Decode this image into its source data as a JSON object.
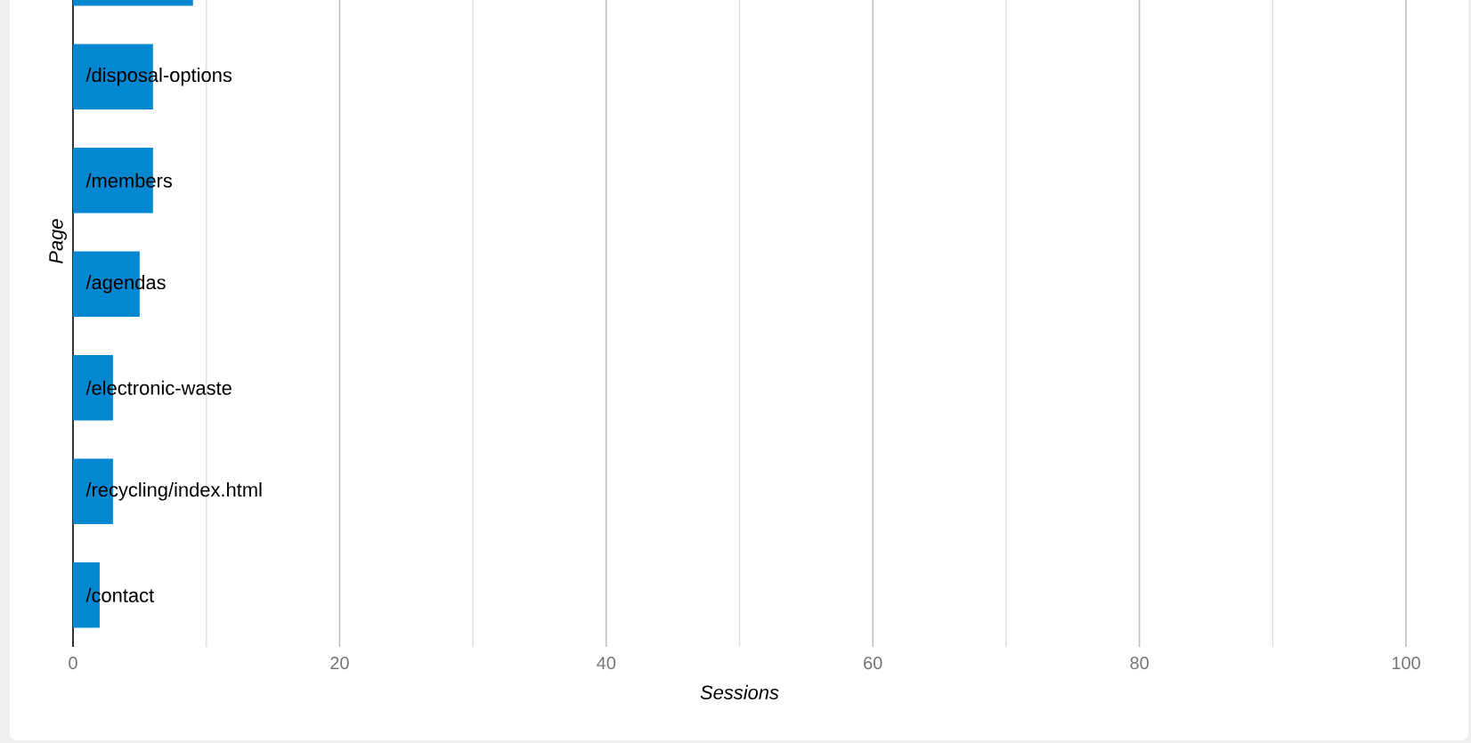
{
  "chart_data": {
    "type": "bar",
    "orientation": "horizontal",
    "xlabel": "Sessions",
    "ylabel": "Page",
    "categories": [
      null,
      "/disposal-options",
      "/members",
      "/agendas",
      "/electronic-waste",
      "/recycling/index.html",
      "/contact"
    ],
    "values": [
      9,
      6,
      6,
      5,
      3,
      3,
      2
    ],
    "color": "#0288d1",
    "xlim": [
      0,
      100
    ],
    "xticks": [
      0,
      20,
      40,
      60,
      80,
      100
    ],
    "grid": "x",
    "tick_labels": "x"
  }
}
